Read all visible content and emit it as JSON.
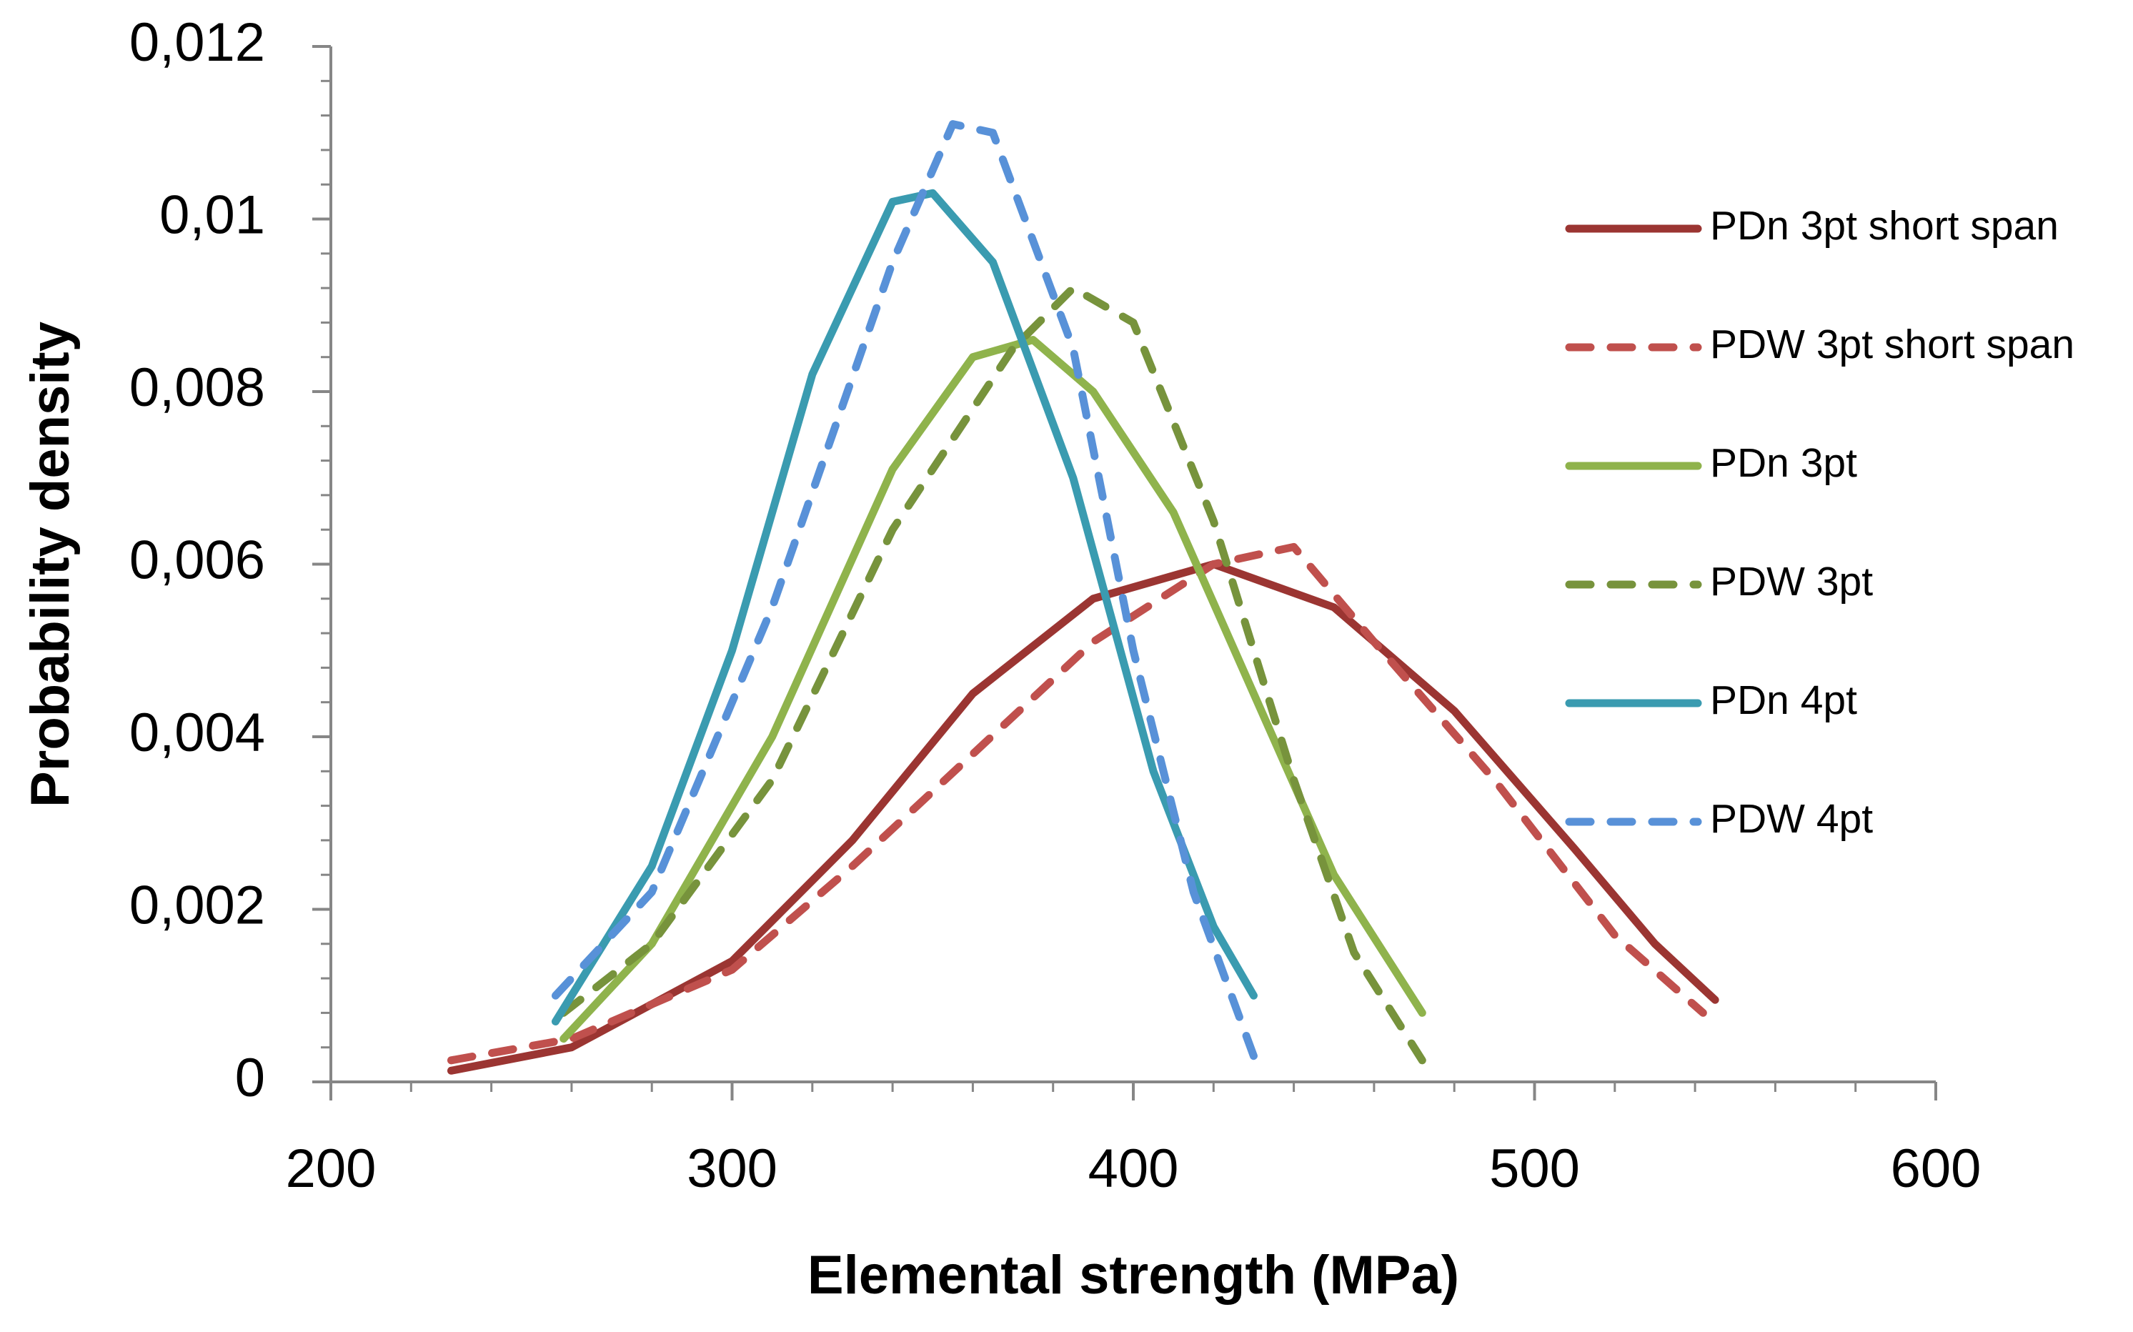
{
  "chart_data": {
    "type": "line",
    "xlabel": "Elemental strength (MPa)",
    "ylabel": "Probability density",
    "xlim": [
      200,
      600
    ],
    "xticks": [
      200,
      300,
      400,
      500,
      600
    ],
    "ylim": [
      0,
      0.012
    ],
    "yticks": [
      0,
      {
        "value": 0.002,
        "label": "0,002"
      },
      {
        "value": 0.004,
        "label": "0,004"
      },
      {
        "value": 0.006,
        "label": "0,006"
      },
      {
        "value": 0.008,
        "label": "0,008"
      },
      {
        "value": 0.01,
        "label": "0,01"
      },
      {
        "value": 0.012,
        "label": "0,012"
      }
    ],
    "legend": "right",
    "series": [
      {
        "name": "PDn 3pt short span",
        "color": "#9b3532",
        "dashed": false,
        "x": [
          230,
          260,
          300,
          330,
          360,
          390,
          420,
          450,
          480,
          510,
          530,
          545
        ],
        "values": [
          0.00013,
          0.0004,
          0.0014,
          0.0028,
          0.0045,
          0.0056,
          0.006,
          0.0055,
          0.0043,
          0.0027,
          0.0016,
          0.00095
        ]
      },
      {
        "name": "PDW 3pt short span",
        "color": "#c0504d",
        "dashed": true,
        "x": [
          230,
          260,
          300,
          330,
          360,
          390,
          420,
          440,
          460,
          490,
          520,
          542
        ],
        "values": [
          0.00025,
          0.0005,
          0.0013,
          0.0025,
          0.0038,
          0.0051,
          0.006,
          0.0062,
          0.0051,
          0.0035,
          0.0017,
          0.0008
        ]
      },
      {
        "name": "PDn 3pt",
        "color": "#8fb34c",
        "dashed": false,
        "x": [
          258,
          280,
          310,
          340,
          360,
          375,
          390,
          410,
          430,
          450,
          472
        ],
        "values": [
          0.0005,
          0.0016,
          0.004,
          0.0071,
          0.0084,
          0.0086,
          0.008,
          0.0066,
          0.0045,
          0.0024,
          0.0008
        ]
      },
      {
        "name": "PDW 3pt",
        "color": "#77933c",
        "dashed": true,
        "x": [
          258,
          280,
          310,
          340,
          370,
          385,
          400,
          420,
          440,
          455,
          472
        ],
        "values": [
          0.0008,
          0.0016,
          0.0035,
          0.0064,
          0.0085,
          0.0092,
          0.0088,
          0.0065,
          0.0035,
          0.0015,
          0.00025
        ]
      },
      {
        "name": "PDn 4pt",
        "color": "#3a9bb0",
        "dashed": false,
        "x": [
          256,
          280,
          300,
          320,
          340,
          350,
          365,
          385,
          405,
          420,
          430
        ],
        "values": [
          0.0007,
          0.0025,
          0.005,
          0.0082,
          0.0102,
          0.0103,
          0.0095,
          0.007,
          0.0036,
          0.0018,
          0.001
        ]
      },
      {
        "name": "PDW 4pt",
        "color": "#5891d8",
        "dashed": true,
        "x": [
          256,
          280,
          310,
          340,
          355,
          365,
          385,
          400,
          415,
          430
        ],
        "values": [
          0.001,
          0.0022,
          0.0055,
          0.0095,
          0.0111,
          0.011,
          0.0085,
          0.005,
          0.0022,
          0.0003
        ]
      }
    ]
  }
}
